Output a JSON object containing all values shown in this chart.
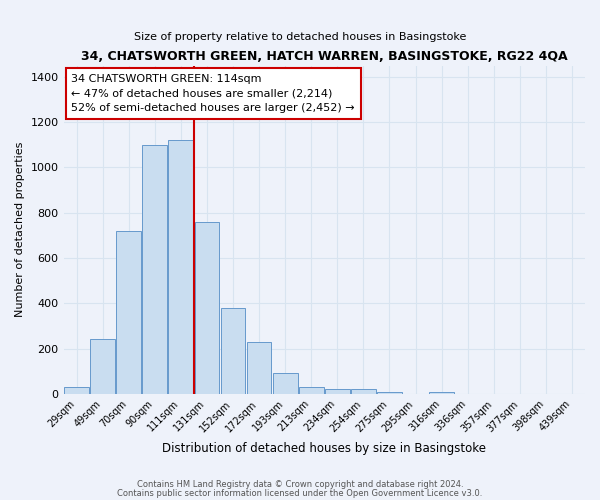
{
  "title": "34, CHATSWORTH GREEN, HATCH WARREN, BASINGSTOKE, RG22 4QA",
  "subtitle": "Size of property relative to detached houses in Basingstoke",
  "xlabel": "Distribution of detached houses by size in Basingstoke",
  "ylabel": "Number of detached properties",
  "bar_labels": [
    "29sqm",
    "49sqm",
    "70sqm",
    "90sqm",
    "111sqm",
    "131sqm",
    "152sqm",
    "172sqm",
    "193sqm",
    "213sqm",
    "234sqm",
    "254sqm",
    "275sqm",
    "295sqm",
    "316sqm",
    "336sqm",
    "357sqm",
    "377sqm",
    "398sqm",
    "439sqm"
  ],
  "bar_heights": [
    30,
    240,
    720,
    1100,
    1120,
    760,
    380,
    230,
    90,
    30,
    22,
    20,
    10,
    0,
    10,
    0,
    0,
    0,
    0,
    0
  ],
  "bar_color": "#c9ddf0",
  "bar_edge_color": "#6699cc",
  "vline_color": "#cc0000",
  "annotation_text": "34 CHATSWORTH GREEN: 114sqm\n← 47% of detached houses are smaller (2,214)\n52% of semi-detached houses are larger (2,452) →",
  "annotation_box_color": "white",
  "annotation_box_edge": "#cc0000",
  "ylim": [
    0,
    1450
  ],
  "yticks": [
    0,
    200,
    400,
    600,
    800,
    1000,
    1200,
    1400
  ],
  "footer1": "Contains HM Land Registry data © Crown copyright and database right 2024.",
  "footer2": "Contains public sector information licensed under the Open Government Licence v3.0.",
  "bg_color": "#eef2fa",
  "grid_color": "#d8e4f0"
}
